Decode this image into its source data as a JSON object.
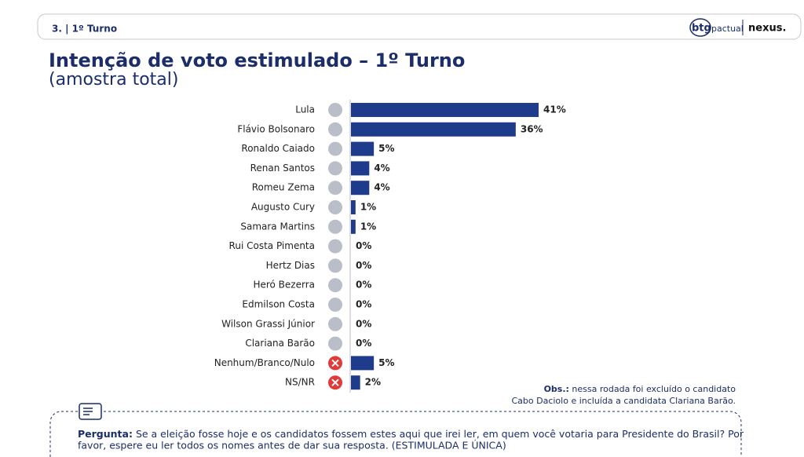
{
  "header": {
    "section": "3. | 1º Turno",
    "brand": "btg",
    "brand_sub": "pactual",
    "partner": "nexus."
  },
  "chart_data": {
    "type": "hbar",
    "title": "Intenção de voto estimulado – 1º Turno",
    "subtitle": "(amostra total)",
    "categories": [
      "Lula",
      "Flávio Bolsonaro",
      "Ronaldo Caiado",
      "Renan Santos",
      "Romeu Zema",
      "Augusto Cury",
      "Samara Martins",
      "Rui Costa Pimenta",
      "Hertz Dias",
      "Heró Bezerra",
      "Edmilson Costa",
      "Wilson Grassi Júnior",
      "Clariana Barão",
      "Nenhum/Branco/Nulo",
      "NS/NR"
    ],
    "values": [
      41,
      36,
      5,
      4,
      4,
      1,
      1,
      0,
      0,
      0,
      0,
      0,
      0,
      5,
      2
    ],
    "value_labels": [
      "41%",
      "36%",
      "5%",
      "4%",
      "4%",
      "1%",
      "1%",
      "0%",
      "0%",
      "0%",
      "0%",
      "0%",
      "0%",
      "5%",
      "2%"
    ],
    "color": "#1f3c8c"
  },
  "note": {
    "label": "Obs.:",
    "lines": [
      "nessa rodada foi excluído o candidato",
      "Cabo Daciolo e incluída a candidata Clariana Barão."
    ]
  },
  "question": {
    "label": "Pergunta:",
    "lines": [
      "Se a eleição fosse hoje e os candidatos fossem estes aqui que irei ler, em quem você votaria para Presidente do Brasil? Por",
      "favor, espere eu ler todos os nomes antes de dar sua resposta. (ESTIMULADA E ÚNICA)"
    ]
  }
}
